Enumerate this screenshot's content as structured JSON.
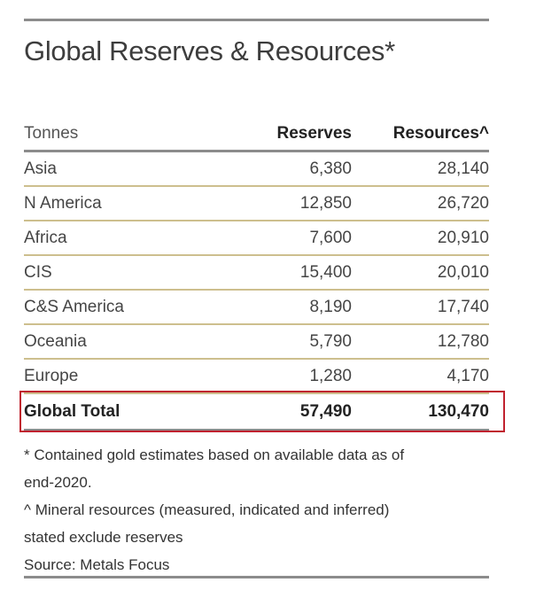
{
  "title": "Global Reserves & Resources*",
  "table": {
    "headers": [
      "Tonnes",
      "Reserves",
      "Resources^"
    ],
    "rows": [
      {
        "region": "Asia",
        "reserves": "6,380",
        "resources": "28,140"
      },
      {
        "region": "N America",
        "reserves": "12,850",
        "resources": "26,720"
      },
      {
        "region": "Africa",
        "reserves": "7,600",
        "resources": "20,910"
      },
      {
        "region": "CIS",
        "reserves": "15,400",
        "resources": "20,010"
      },
      {
        "region": "C&S America",
        "reserves": "8,190",
        "resources": "17,740"
      },
      {
        "region": "Oceania",
        "reserves": "5,790",
        "resources": "12,780"
      },
      {
        "region": "Europe",
        "reserves": "1,280",
        "resources": "4,170"
      }
    ],
    "total": {
      "region": "Global Total",
      "reserves": "57,490",
      "resources": "130,470"
    }
  },
  "notes": {
    "footnote_star_line1": "* Contained gold estimates based on available data as of",
    "footnote_star_line2": "end-2020.",
    "footnote_caret_line1": "^ Mineral resources (measured, indicated and inferred)",
    "footnote_caret_line2": "stated exclude reserves",
    "source": "Source: Metals Focus"
  },
  "colors": {
    "highlight_border": "#c0212e",
    "row_divider": "#cdbf8e",
    "rule": "#8c8c8c"
  }
}
